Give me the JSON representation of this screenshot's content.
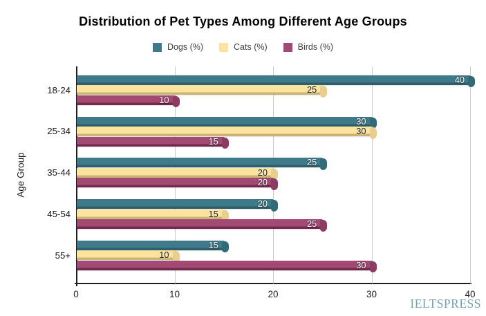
{
  "page": {
    "background": "#ffffff"
  },
  "watermark": {
    "text": "IELTSPRESS",
    "color": "#74a1b4"
  },
  "chart_data": {
    "type": "bar",
    "orientation": "horizontal",
    "title": "Distribution of Pet Types Among Different Age Groups",
    "categories": [
      "18-24",
      "25-34",
      "35-44",
      "45-54",
      "55+"
    ],
    "series": [
      {
        "name": "Dogs (%)",
        "values": [
          40,
          30,
          25,
          20,
          15
        ],
        "color": "#3f7a8a",
        "edge_color": "#2e5f6b",
        "cap_color": "#336a78",
        "label_color": "light"
      },
      {
        "name": "Cats (%)",
        "values": [
          25,
          30,
          20,
          15,
          10
        ],
        "color": "#fce49e",
        "edge_color": "#c9b377",
        "cap_color": "#e8cf8e",
        "label_color": "dark"
      },
      {
        "name": "Birds (%)",
        "values": [
          10,
          15,
          20,
          25,
          30
        ],
        "color": "#a24a74",
        "edge_color": "#75294d",
        "cap_color": "#8b3c63",
        "label_color": "light"
      }
    ],
    "xlabel": "",
    "ylabel": "Age Group",
    "xlim": [
      0,
      40
    ],
    "x_ticks": [
      0,
      10,
      20,
      30,
      40
    ],
    "grid": "vertical-gridlines",
    "gridline_color": "#cccccc",
    "axis_color": "#1f1f1f",
    "legend_position": "top-center",
    "value_labels": "inside-end"
  }
}
